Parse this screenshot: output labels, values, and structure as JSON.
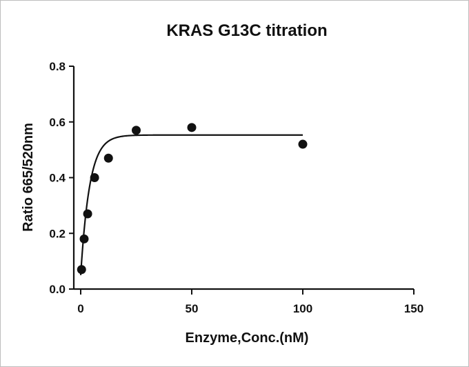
{
  "chart_data": {
    "type": "scatter",
    "title": "KRAS G13C titration",
    "xlabel": "Enzyme,Conc.(nM)",
    "ylabel": "Ratio 665/520nm",
    "xlim": [
      0,
      150
    ],
    "ylim": [
      0,
      0.8
    ],
    "x_ticks": [
      "0",
      "50",
      "100",
      "150"
    ],
    "y_ticks": [
      "0.0",
      "0.2",
      "0.4",
      "0.6",
      "0.8"
    ],
    "grid": false,
    "series": [
      {
        "points": [
          {
            "x": 0.39,
            "y": 0.07
          },
          {
            "x": 1.56,
            "y": 0.18
          },
          {
            "x": 3.13,
            "y": 0.27
          },
          {
            "x": 6.25,
            "y": 0.4
          },
          {
            "x": 12.5,
            "y": 0.47
          },
          {
            "x": 25,
            "y": 0.57
          },
          {
            "x": 50,
            "y": 0.58
          },
          {
            "x": 100,
            "y": 0.52
          }
        ],
        "fit": {
          "model": "one-phase association",
          "y0": 0.05,
          "plateau": 0.553,
          "k": 0.25,
          "x_range": [
            0,
            100
          ]
        },
        "color": "#111111"
      }
    ]
  }
}
